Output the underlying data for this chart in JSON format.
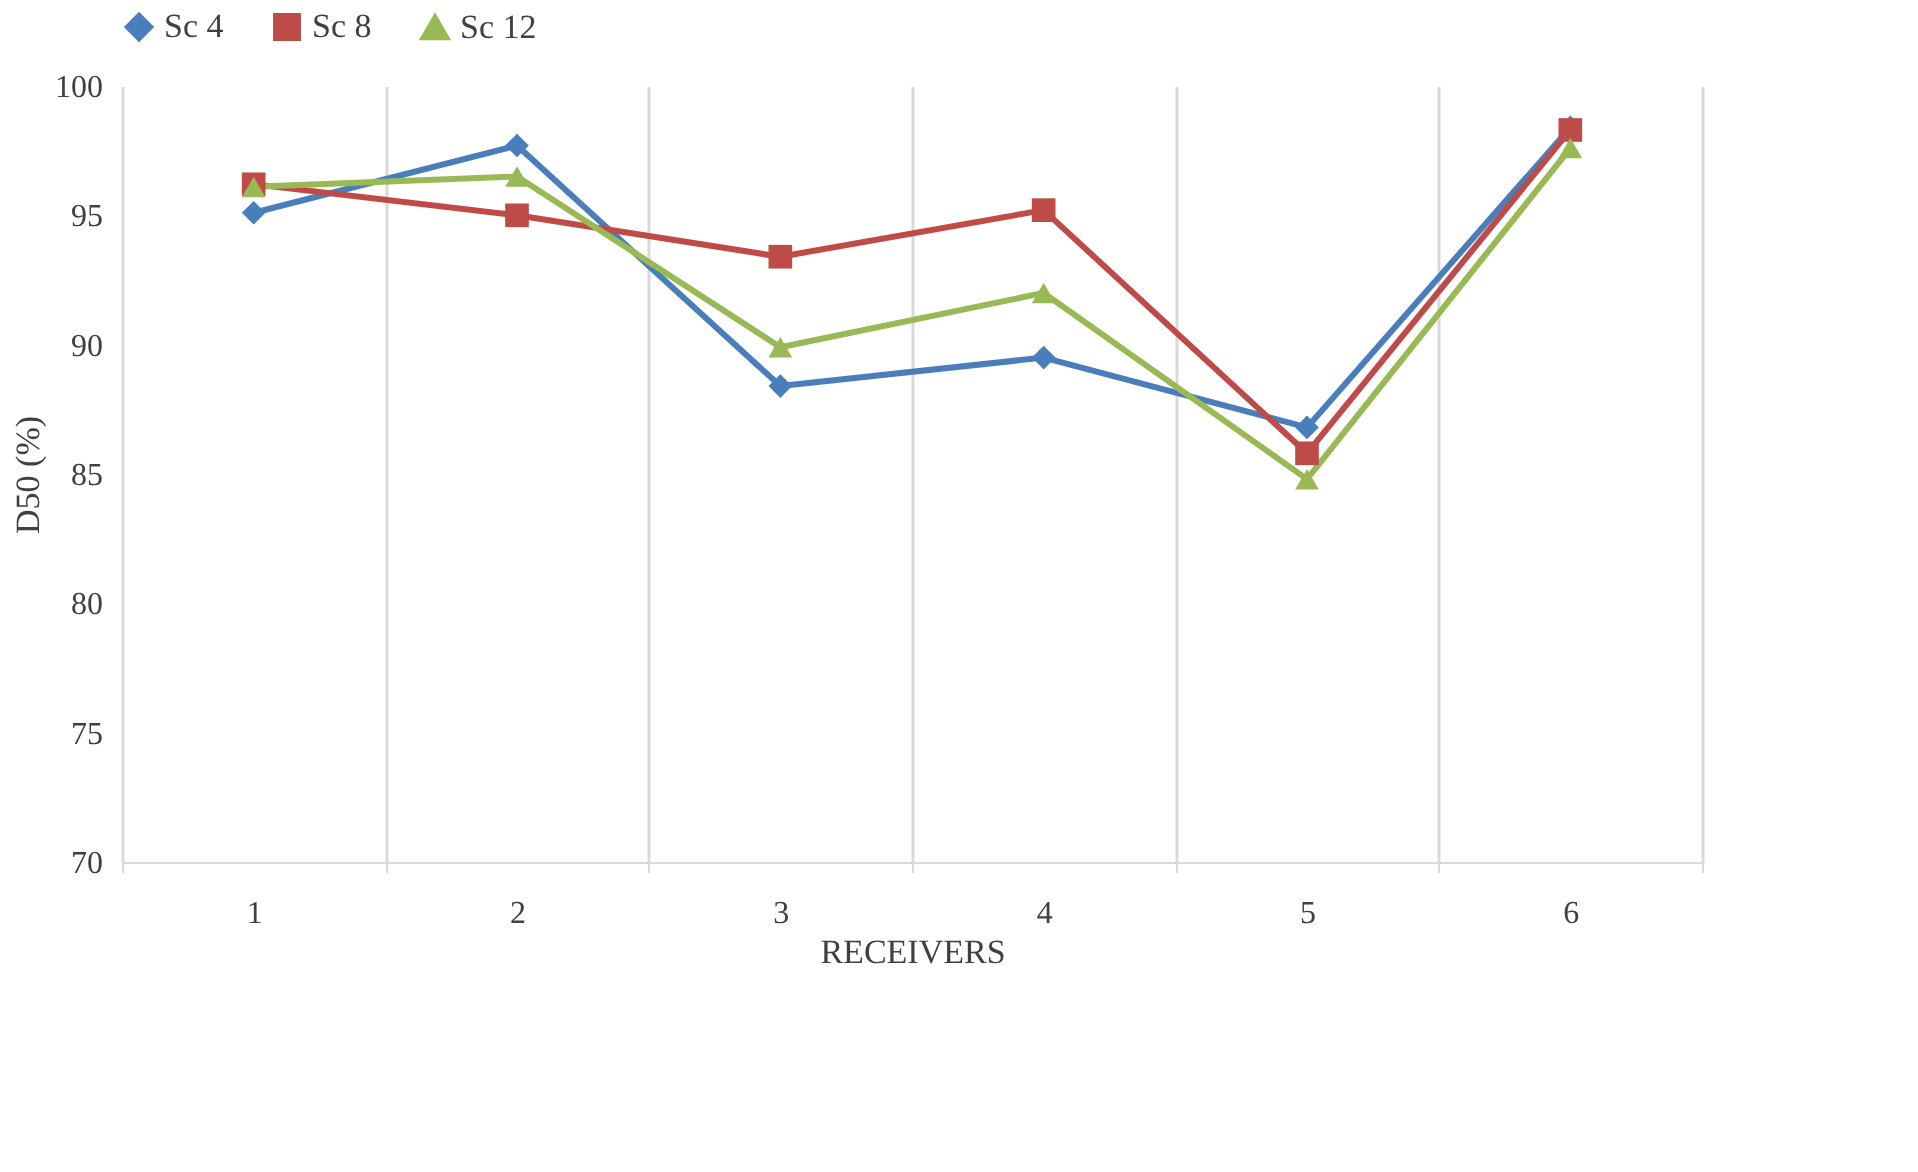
{
  "chart_data": {
    "type": "line",
    "xlabel": "RECEIVERS",
    "ylabel": "D50 (%)",
    "categories": [
      "1",
      "2",
      "3",
      "4",
      "5",
      "6"
    ],
    "series": [
      {
        "name": "Sc 4",
        "color": "#4a7ebb",
        "marker": "diamond",
        "values": [
          95.1,
          97.7,
          88.4,
          89.5,
          86.8,
          98.4
        ]
      },
      {
        "name": "Sc 8",
        "color": "#be4b48",
        "marker": "square",
        "values": [
          96.2,
          95.0,
          93.4,
          95.2,
          85.8,
          98.3
        ]
      },
      {
        "name": "Sc 12",
        "color": "#98b954",
        "marker": "triangle",
        "values": [
          96.1,
          96.5,
          89.9,
          92.0,
          84.8,
          97.6
        ]
      }
    ],
    "ylim": [
      70,
      100
    ],
    "yticks": [
      70,
      75,
      80,
      85,
      90,
      95,
      100
    ],
    "grid": "x",
    "legend": "top",
    "line_style": "solid"
  }
}
